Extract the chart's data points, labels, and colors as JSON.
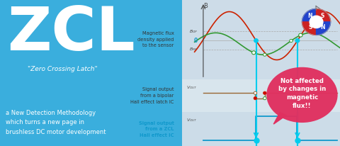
{
  "left_bg_color": "#3aaedd",
  "right_bg_color": "#dde8f0",
  "zcl_text": "ZCL",
  "zcl_color": "#ffffff",
  "subtitle_text": "\"Zero Crossing Latch\"",
  "subtitle_color": "#ffffff",
  "desc_text": "a New Detection Methodology\nwhich turns a new page in\nbrushless DC motor development",
  "desc_color": "#ffffff",
  "mag_label": "Magnetic flux\ndensity applied\nto the sensor",
  "sig1_label": "Signal output\nfrom a bipolar\nHall effect latch IC",
  "sig2_label": "Signal output\nfrom a ZCL\nHall effect IC",
  "sig1_color": "#333333",
  "sig2_color": "#1199cc",
  "vout_color": "#555555",
  "sine_color": "#cc2200",
  "cosine_color": "#339933",
  "bipolar_color": "#996633",
  "not_affected_text": "Not affected\nby changes in\nmagnetic\nflux!!",
  "not_affected_bg": "#e03060",
  "not_affected_color": "#ffffff",
  "magnet_s_color": "#cc2222",
  "magnet_n_color": "#2244cc",
  "top_band_color": "#cddce8",
  "mid_band_color": "#d8e5ed",
  "bot_band_color": "#ccdce8",
  "cyan_color": "#00ccee",
  "axis_color": "#444444"
}
